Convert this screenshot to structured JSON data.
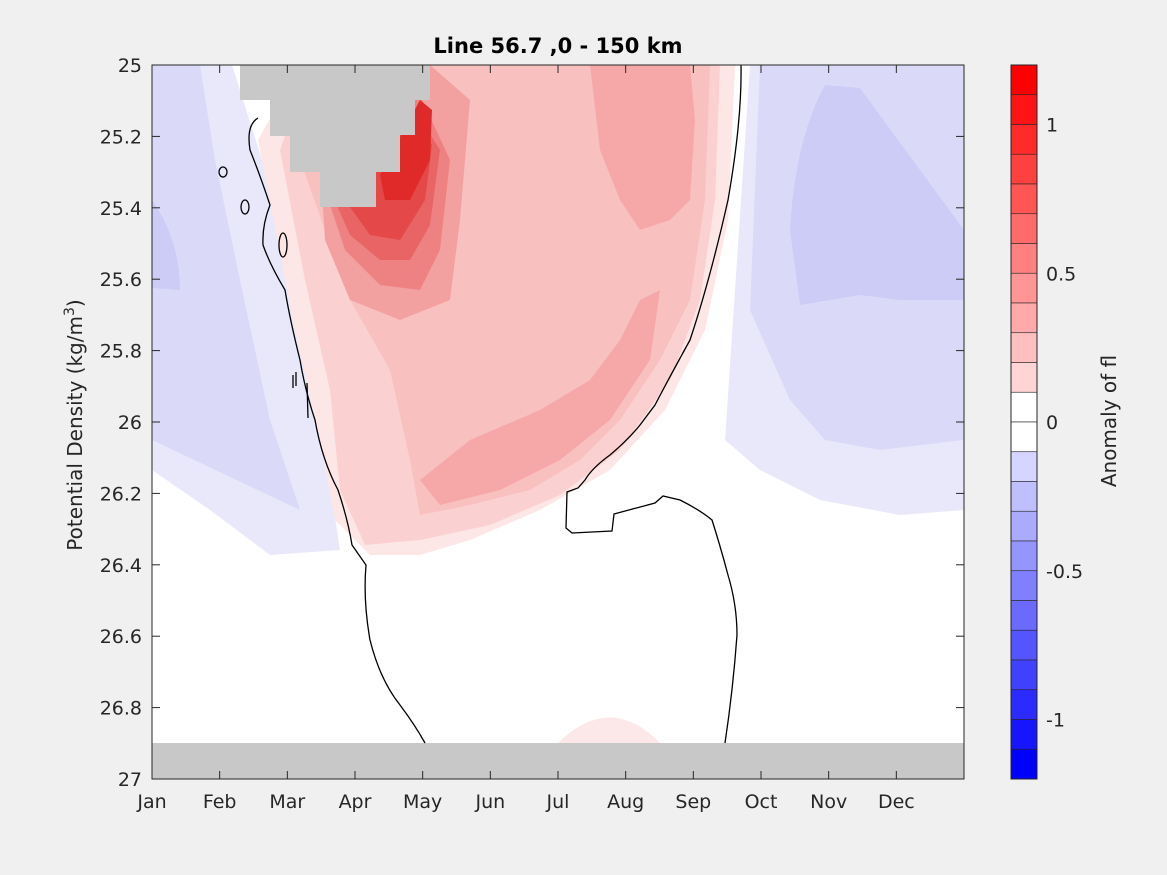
{
  "chart_data": {
    "type": "heatmap",
    "title": "Line 56.7 ,0 - 150 km",
    "xlabel": "",
    "ylabel": "Potential Density (kg/m",
    "ylabel_superscript": "3",
    "ylabel_suffix": ")",
    "x_categories": [
      "Jan",
      "Feb",
      "Mar",
      "Apr",
      "May",
      "Jun",
      "Jul",
      "Aug",
      "Sep",
      "Oct",
      "Nov",
      "Dec"
    ],
    "xlim": [
      0,
      12
    ],
    "ylim": [
      25,
      27
    ],
    "y_reversed": true,
    "y_ticks": [
      25,
      25.2,
      25.4,
      25.6,
      25.8,
      26,
      26.2,
      26.4,
      26.6,
      26.8,
      27
    ],
    "y_tick_labels": [
      "25",
      "25.2",
      "25.4",
      "25.6",
      "25.8",
      "26",
      "26.2",
      "26.4",
      "26.6",
      "26.8",
      "27"
    ],
    "colorbar": {
      "label": "Anomaly of fl",
      "clim": [
        -1.2,
        1.2
      ],
      "levels": 24,
      "ticks": [
        -1,
        -0.5,
        0,
        0.5,
        1
      ],
      "tick_labels": [
        "-1",
        "-0.5",
        "0",
        "0.5",
        "1"
      ],
      "colormap": "blue-white-red",
      "color_neg_max": "#0000ff",
      "color_pos_max": "#ff0000",
      "color_zero": "#ffffff"
    },
    "missing_color": "#c8c8c8",
    "features": [
      {
        "kind": "positive-anomaly",
        "peak": 1.1,
        "month_range": [
          "Mar",
          "Sep"
        ],
        "density_range": [
          25,
          26.38
        ]
      },
      {
        "kind": "negative-anomaly",
        "peak": -0.3,
        "month_range": [
          "Jan",
          "Mar"
        ],
        "density_range": [
          25,
          26.4
        ]
      },
      {
        "kind": "negative-anomaly",
        "peak": -0.35,
        "month_range": [
          "Sep",
          "Dec"
        ],
        "density_range": [
          25,
          26.25
        ]
      },
      {
        "kind": "positive-anomaly",
        "peak": 0.1,
        "month_range": [
          "Jul",
          "Aug"
        ],
        "density_range": [
          26.8,
          26.9
        ]
      },
      {
        "kind": "missing-data",
        "month_range": [
          "Feb",
          "May"
        ],
        "density_range": [
          25,
          25.4
        ]
      },
      {
        "kind": "missing-data",
        "month_range": [
          "Jan",
          "Dec"
        ],
        "density_range": [
          26.9,
          27
        ]
      }
    ],
    "zero_contour": true,
    "grid": false,
    "legend": "none"
  }
}
